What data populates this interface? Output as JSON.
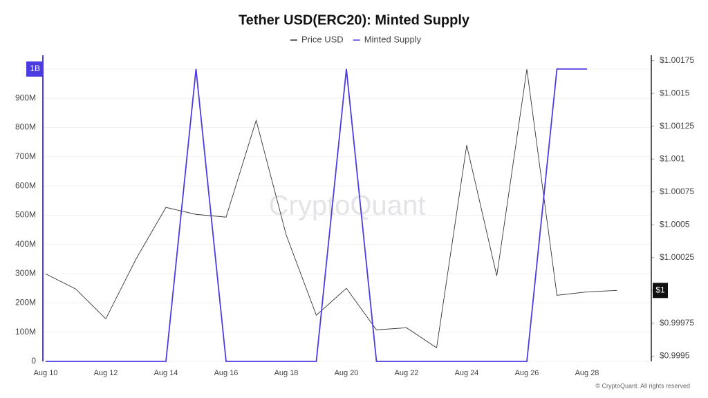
{
  "chart_data": {
    "type": "line",
    "title": "Tether USD(ERC20): Minted Supply",
    "watermark": "CryptoQuant",
    "copyright": "© CryptoQuant. All rights reserved",
    "categories": [
      "Aug 10",
      null,
      "Aug 12",
      null,
      "Aug 14",
      null,
      "Aug 16",
      null,
      "Aug 18",
      null,
      "Aug 20",
      null,
      "Aug 22",
      null,
      "Aug 24",
      null,
      "Aug 26",
      null,
      "Aug 28",
      null
    ],
    "series": [
      {
        "name": "Price USD",
        "color": "#333333",
        "axis": "y2",
        "values": [
          1.000126,
          1.000011,
          0.999784,
          1.000237,
          1.000632,
          1.000579,
          1.000558,
          1.001295,
          1.000421,
          0.999811,
          1.000016,
          0.9997,
          0.999716,
          0.999563,
          1.001105,
          1.000111,
          1.001684,
          0.999963,
          0.999989,
          1.0
        ]
      },
      {
        "name": "Minted Supply",
        "color": "#4b3be0",
        "values": [
          0,
          0,
          0,
          0,
          0,
          1000000000,
          0,
          0,
          0,
          0,
          1000000000,
          0,
          0,
          0,
          0,
          0,
          0,
          1000000000,
          1000000000,
          null
        ]
      }
    ],
    "ylim": [
      0,
      1047000000
    ],
    "yticks": [
      0,
      {
        "value": 100000000,
        "label": "100M"
      },
      {
        "value": 200000000,
        "label": "200M"
      },
      {
        "value": 300000000,
        "label": "300M"
      },
      {
        "value": 400000000,
        "label": "400M"
      },
      {
        "value": 500000000,
        "label": "500M"
      },
      {
        "value": 600000000,
        "label": "600M"
      },
      {
        "value": 700000000,
        "label": "700M"
      },
      {
        "value": 800000000,
        "label": "800M"
      },
      {
        "value": 900000000,
        "label": "900M"
      },
      {
        "value": 1000000000,
        "label": "1B"
      }
    ],
    "y2lim": [
      0.99946,
      1.00179
    ],
    "y2ticks": [
      {
        "value": 0.9995,
        "label": "$0.9995"
      },
      {
        "value": 0.99975,
        "label": "$0.99975"
      },
      {
        "value": 1.0,
        "label": "$1"
      },
      {
        "value": 1.00025,
        "label": "$1.00025"
      },
      {
        "value": 1.0005,
        "label": "$1.0005"
      },
      {
        "value": 1.00075,
        "label": "$1.00075"
      },
      {
        "value": 1.001,
        "label": "$1.001"
      },
      {
        "value": 1.00125,
        "label": "$1.00125"
      },
      {
        "value": 1.0015,
        "label": "$1.0015"
      },
      {
        "value": 1.00175,
        "label": "$1.00175"
      }
    ],
    "grid": true,
    "legend": "top"
  }
}
